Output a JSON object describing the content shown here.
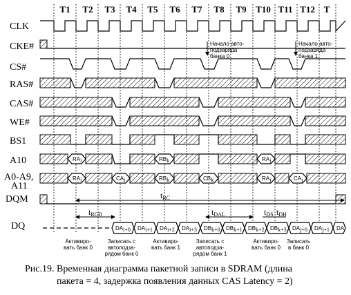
{
  "periods": [
    "T1",
    "T2",
    "T3",
    "T4",
    "T5",
    "T6",
    "T7",
    "T8",
    "T9",
    "T10",
    "T11",
    "T12",
    "T"
  ],
  "signals": {
    "clk": "CLK",
    "cke": "CKE#",
    "cs": "CS#",
    "ras": "RAS#",
    "cas": "CAS#",
    "we": "WE#",
    "bs1": "BS1",
    "a10": "A10",
    "addr_line1": "A0-A9,",
    "addr_line2": "A11",
    "dqm": "DQM",
    "dq": "DQ"
  },
  "cells": {
    "a10_1": "RA",
    "a10_1_sub": "i",
    "a10_2": "RB",
    "a10_2_sub": "k",
    "a10_3": "RA",
    "a10_3_sub": "j",
    "addr_1": "RA",
    "addr_1_sub": "i",
    "addr_2": "CA",
    "addr_2_sub": "i",
    "addr_3": "RB",
    "addr_3_sub": "k",
    "addr_4": "CB",
    "addr_4_sub": "k",
    "addr_5": "RA",
    "addr_5_sub": "j",
    "addr_6": "CA",
    "addr_6_sub": "j"
  },
  "dq_cells": [
    {
      "main": "DA",
      "sub": "i+0"
    },
    {
      "main": "DA",
      "sub": "i+1"
    },
    {
      "main": "DA",
      "sub": "i+2"
    },
    {
      "main": "DA",
      "sub": "i+3"
    },
    {
      "main": "DB",
      "sub": "k+0"
    },
    {
      "main": "DB",
      "sub": "k+1"
    },
    {
      "main": "DB",
      "sub": "k+2"
    },
    {
      "main": "DB",
      "sub": "k+3"
    },
    {
      "main": "DA",
      "sub": "j+0"
    },
    {
      "main": "DA",
      "sub": "j+1"
    },
    {
      "main": "DA",
      "sub": ""
    }
  ],
  "annotations": {
    "precharge0": [
      "Начало авто-",
      "подзаряда",
      "банка 0"
    ],
    "precharge1": [
      "Начало авто-",
      "подзаряда",
      "банка 1"
    ]
  },
  "timing": {
    "rcd": "t",
    "rcd_sub": "RCD",
    "rc": "t",
    "rc_sub": "RC",
    "dal": "t",
    "dal_sub": "DAL",
    "ds": "t",
    "ds_sub": "DS",
    "dh": "t",
    "dh_sub": "DH"
  },
  "bottom_notes": [
    [
      "Активиро-",
      "вать банк 0"
    ],
    [
      "Записать с",
      "автоподза-",
      "рядом банк 0"
    ],
    [
      "Активиро-",
      "вать банк 1"
    ],
    [
      "Записать с",
      "автоподза-",
      "рядом банк 1"
    ],
    [
      "Активиро-",
      "вать банк 0"
    ],
    [
      "Записать",
      "в банк 0"
    ]
  ],
  "caption": {
    "line1": "Рис.19. Временная диаграмма пакетной записи в  SDRAM (длина",
    "line2": "пакета = 4, задержка появления данных CAS Latency  = 2)"
  }
}
